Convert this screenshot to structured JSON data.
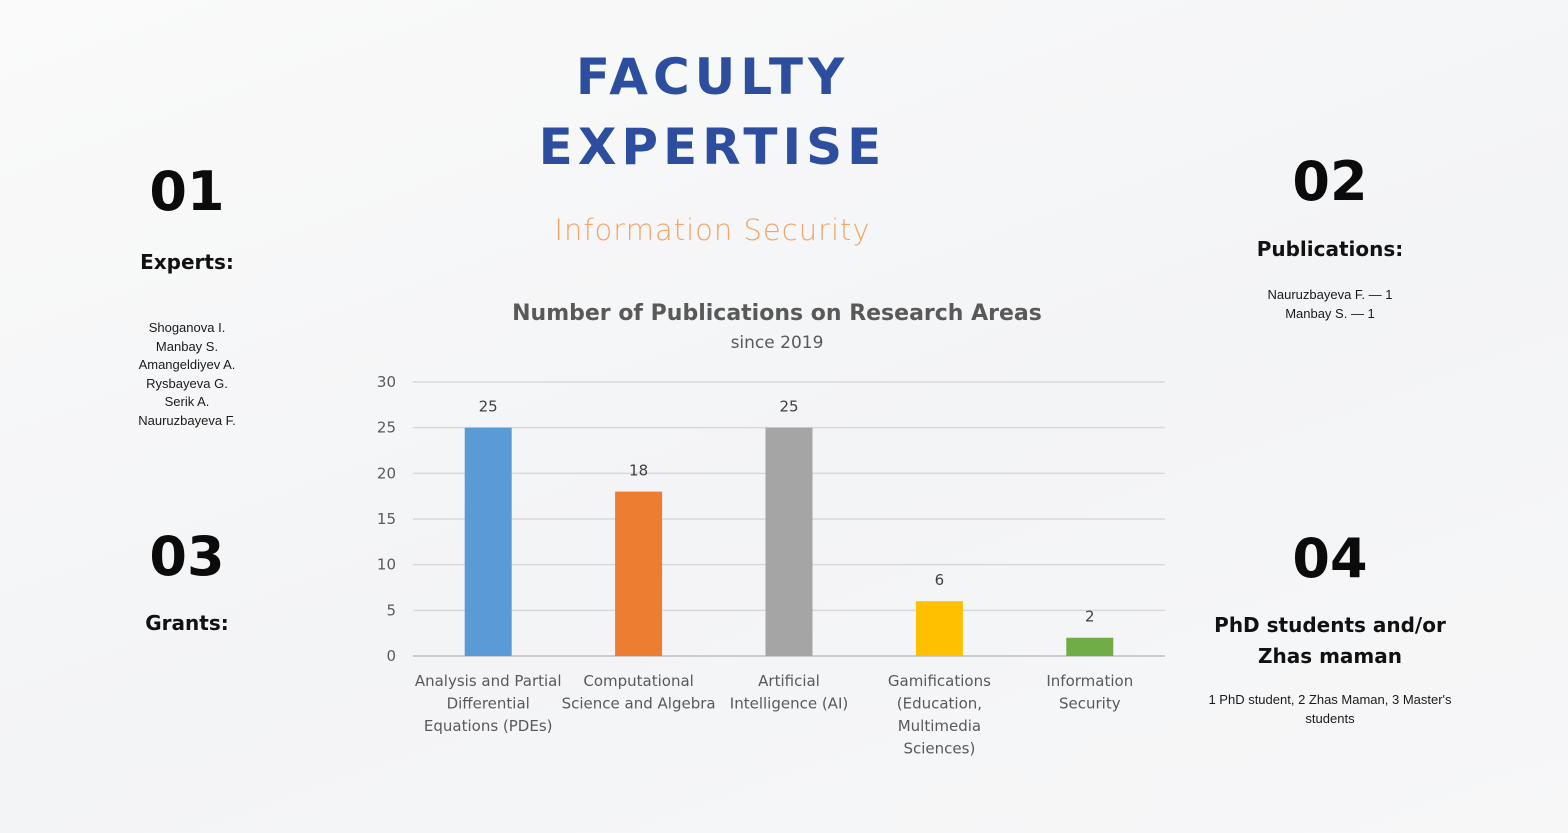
{
  "header": {
    "title_line1": "FACULTY",
    "title_line2": "EXPERTISE",
    "subtitle": "Information Security"
  },
  "sections": {
    "s01": {
      "number": "01",
      "heading": "Experts:",
      "items": [
        "Shoganova I.",
        "Manbay S.",
        "Amangeldiyev A.",
        "Rysbayeva G.",
        "Serik A.",
        "Nauruzbayeva F."
      ]
    },
    "s02": {
      "number": "02",
      "heading": "Publications:",
      "items": [
        "Nauruzbayeva F. — 1",
        "Manbay S. — 1"
      ]
    },
    "s03": {
      "number": "03",
      "heading": "Grants:"
    },
    "s04": {
      "number": "04",
      "heading_line1": "PhD students and/or",
      "heading_line2": "Zhas maman",
      "text_line1": "1 PhD student, 2 Zhas Maman, 3 Master's",
      "text_line2": "students"
    }
  },
  "colors": {
    "title": "#2d4e9f",
    "subtitle": "#f0a466",
    "bars": [
      "#5b9bd5",
      "#ed7d31",
      "#a5a5a5",
      "#ffc000",
      "#70ad47"
    ]
  },
  "chart_data": {
    "type": "bar",
    "title": "Number of Publications on Research Areas",
    "subtitle": "since 2019",
    "categories": [
      [
        "Analysis and Partial",
        "Differential",
        "Equations (PDEs)"
      ],
      [
        "Computational",
        "Science and Algebra"
      ],
      [
        "Artificial",
        "Intelligence (AI)"
      ],
      [
        "Gamifications",
        "(Education,",
        "Multimedia",
        "Sciences)"
      ],
      [
        "Information",
        "Security"
      ]
    ],
    "values": [
      25,
      18,
      25,
      6,
      2
    ],
    "ylim": [
      0,
      30
    ],
    "yticks": [
      0,
      5,
      10,
      15,
      20,
      25,
      30
    ],
    "grid": true,
    "legend": "none"
  }
}
